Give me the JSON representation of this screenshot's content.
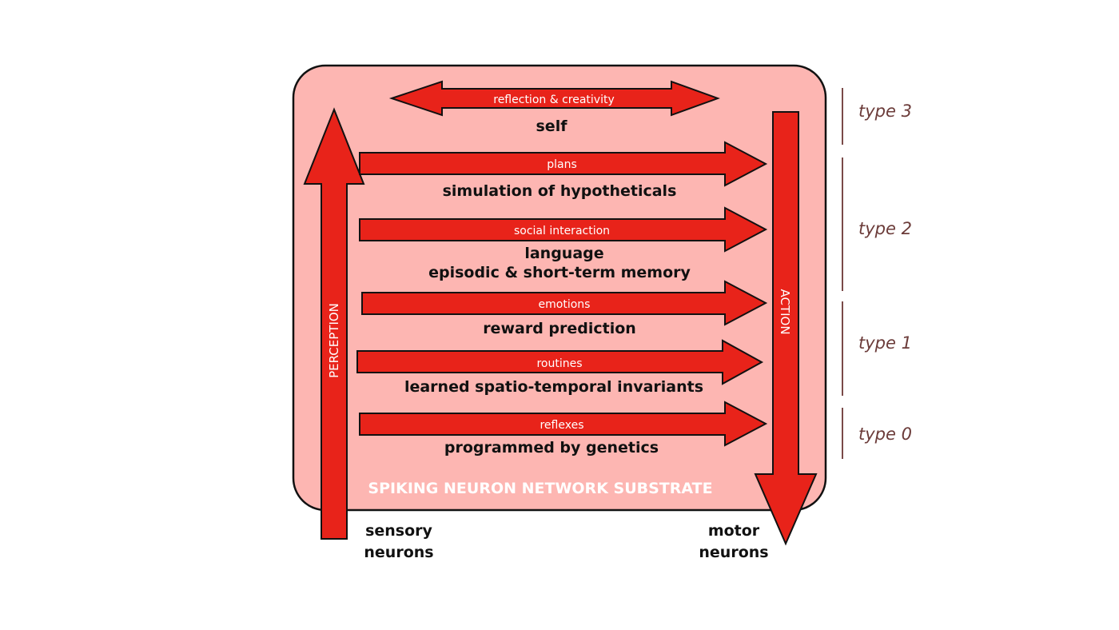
{
  "substrate_label": "SPIKING NEURON NETWORK SUBSTRATE",
  "perception_label": "PERCEPTION",
  "action_label": "ACTION",
  "reflection_label": "reflection & creativity",
  "self_label": "self",
  "rows": [
    {
      "arrow_label": "plans",
      "lines": [
        "simulation of hypotheticals"
      ]
    },
    {
      "arrow_label": "social interaction",
      "lines": [
        "language",
        "episodic & short-term memory"
      ]
    },
    {
      "arrow_label": "emotions",
      "lines": [
        "reward prediction"
      ]
    },
    {
      "arrow_label": "routines",
      "lines": [
        "learned spatio-temporal invariants"
      ]
    },
    {
      "arrow_label": "reflexes",
      "lines": [
        "programmed by genetics"
      ]
    }
  ],
  "sensory_lines": [
    "sensory",
    "neurons"
  ],
  "motor_lines": [
    "motor",
    "neurons"
  ],
  "types": [
    "type 3",
    "type 2",
    "type 1",
    "type 0"
  ],
  "colors": {
    "arrow": "#e8231a",
    "substrate": "#fdb6b2",
    "type_text": "#6b3b39"
  }
}
